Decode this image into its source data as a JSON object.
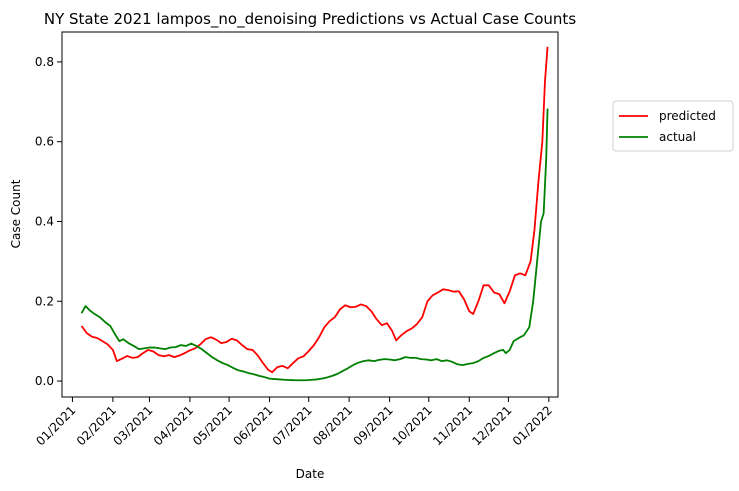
{
  "chart_data": {
    "type": "line",
    "title": "NY State 2021 lampos_no_denoising Predictions vs Actual Case Counts",
    "xlabel": "Date",
    "ylabel": "Case Count",
    "x_ticks": [
      "01/2021",
      "02/2021",
      "03/2021",
      "04/2021",
      "05/2021",
      "06/2021",
      "07/2021",
      "08/2021",
      "09/2021",
      "10/2021",
      "11/2021",
      "12/2021",
      "01/2022"
    ],
    "y_ticks": [
      "0.0",
      "0.2",
      "0.4",
      "0.6",
      "0.8"
    ],
    "xlim": [
      "2020-12-24",
      "2022-01-08"
    ],
    "ylim": [
      -0.04,
      0.875
    ],
    "grid": false,
    "legend_placement": "outside-top-right",
    "series": [
      {
        "name": "predicted",
        "color": "#ff0000",
        "points": [
          [
            "2021-01-08",
            0.138
          ],
          [
            "2021-01-12",
            0.12
          ],
          [
            "2021-01-16",
            0.111
          ],
          [
            "2021-01-20",
            0.108
          ],
          [
            "2021-01-24",
            0.1
          ],
          [
            "2021-01-28",
            0.092
          ],
          [
            "2021-02-01",
            0.078
          ],
          [
            "2021-02-04",
            0.05
          ],
          [
            "2021-02-08",
            0.056
          ],
          [
            "2021-02-12",
            0.063
          ],
          [
            "2021-02-16",
            0.058
          ],
          [
            "2021-02-20",
            0.06
          ],
          [
            "2021-02-24",
            0.07
          ],
          [
            "2021-02-28",
            0.078
          ],
          [
            "2021-03-04",
            0.074
          ],
          [
            "2021-03-08",
            0.065
          ],
          [
            "2021-03-12",
            0.062
          ],
          [
            "2021-03-16",
            0.065
          ],
          [
            "2021-03-20",
            0.06
          ],
          [
            "2021-03-24",
            0.064
          ],
          [
            "2021-03-28",
            0.07
          ],
          [
            "2021-04-01",
            0.077
          ],
          [
            "2021-04-05",
            0.082
          ],
          [
            "2021-04-09",
            0.092
          ],
          [
            "2021-04-13",
            0.105
          ],
          [
            "2021-04-17",
            0.11
          ],
          [
            "2021-04-21",
            0.104
          ],
          [
            "2021-04-25",
            0.095
          ],
          [
            "2021-04-29",
            0.098
          ],
          [
            "2021-05-03",
            0.106
          ],
          [
            "2021-05-07",
            0.102
          ],
          [
            "2021-05-11",
            0.09
          ],
          [
            "2021-05-15",
            0.08
          ],
          [
            "2021-05-19",
            0.078
          ],
          [
            "2021-05-23",
            0.064
          ],
          [
            "2021-05-27",
            0.045
          ],
          [
            "2021-05-31",
            0.028
          ],
          [
            "2021-06-03",
            0.022
          ],
          [
            "2021-06-07",
            0.035
          ],
          [
            "2021-06-11",
            0.038
          ],
          [
            "2021-06-15",
            0.032
          ],
          [
            "2021-06-19",
            0.045
          ],
          [
            "2021-06-23",
            0.057
          ],
          [
            "2021-06-27",
            0.062
          ],
          [
            "2021-07-01",
            0.075
          ],
          [
            "2021-07-05",
            0.09
          ],
          [
            "2021-07-09",
            0.11
          ],
          [
            "2021-07-13",
            0.135
          ],
          [
            "2021-07-17",
            0.15
          ],
          [
            "2021-07-21",
            0.16
          ],
          [
            "2021-07-25",
            0.18
          ],
          [
            "2021-07-29",
            0.19
          ],
          [
            "2021-08-02",
            0.185
          ],
          [
            "2021-08-06",
            0.186
          ],
          [
            "2021-08-10",
            0.192
          ],
          [
            "2021-08-14",
            0.188
          ],
          [
            "2021-08-18",
            0.175
          ],
          [
            "2021-08-22",
            0.155
          ],
          [
            "2021-08-26",
            0.14
          ],
          [
            "2021-08-30",
            0.145
          ],
          [
            "2021-09-03",
            0.125
          ],
          [
            "2021-09-06",
            0.102
          ],
          [
            "2021-09-10",
            0.115
          ],
          [
            "2021-09-14",
            0.125
          ],
          [
            "2021-09-18",
            0.132
          ],
          [
            "2021-09-22",
            0.143
          ],
          [
            "2021-09-26",
            0.16
          ],
          [
            "2021-09-30",
            0.2
          ],
          [
            "2021-10-04",
            0.215
          ],
          [
            "2021-10-08",
            0.222
          ],
          [
            "2021-10-12",
            0.23
          ],
          [
            "2021-10-16",
            0.228
          ],
          [
            "2021-10-20",
            0.224
          ],
          [
            "2021-10-24",
            0.225
          ],
          [
            "2021-10-28",
            0.205
          ],
          [
            "2021-11-01",
            0.175
          ],
          [
            "2021-11-04",
            0.168
          ],
          [
            "2021-11-08",
            0.2
          ],
          [
            "2021-11-12",
            0.24
          ],
          [
            "2021-11-16",
            0.24
          ],
          [
            "2021-11-20",
            0.222
          ],
          [
            "2021-11-24",
            0.218
          ],
          [
            "2021-11-28",
            0.195
          ],
          [
            "2021-12-02",
            0.225
          ],
          [
            "2021-12-06",
            0.265
          ],
          [
            "2021-12-10",
            0.27
          ],
          [
            "2021-12-14",
            0.265
          ],
          [
            "2021-12-18",
            0.3
          ],
          [
            "2021-12-21",
            0.38
          ],
          [
            "2021-12-24",
            0.5
          ],
          [
            "2021-12-27",
            0.6
          ],
          [
            "2021-12-29",
            0.75
          ],
          [
            "2021-12-31",
            0.838
          ]
        ]
      },
      {
        "name": "actual",
        "color": "#008000",
        "points": [
          [
            "2021-01-08",
            0.17
          ],
          [
            "2021-01-11",
            0.188
          ],
          [
            "2021-01-14",
            0.178
          ],
          [
            "2021-01-18",
            0.168
          ],
          [
            "2021-01-22",
            0.16
          ],
          [
            "2021-01-26",
            0.148
          ],
          [
            "2021-01-30",
            0.138
          ],
          [
            "2021-02-03",
            0.115
          ],
          [
            "2021-02-06",
            0.1
          ],
          [
            "2021-02-09",
            0.105
          ],
          [
            "2021-02-13",
            0.095
          ],
          [
            "2021-02-17",
            0.088
          ],
          [
            "2021-02-21",
            0.08
          ],
          [
            "2021-02-25",
            0.082
          ],
          [
            "2021-03-01",
            0.084
          ],
          [
            "2021-03-05",
            0.084
          ],
          [
            "2021-03-09",
            0.082
          ],
          [
            "2021-03-13",
            0.08
          ],
          [
            "2021-03-17",
            0.084
          ],
          [
            "2021-03-21",
            0.085
          ],
          [
            "2021-03-25",
            0.09
          ],
          [
            "2021-03-29",
            0.088
          ],
          [
            "2021-04-02",
            0.094
          ],
          [
            "2021-04-06",
            0.088
          ],
          [
            "2021-04-10",
            0.08
          ],
          [
            "2021-04-14",
            0.07
          ],
          [
            "2021-04-18",
            0.06
          ],
          [
            "2021-04-22",
            0.052
          ],
          [
            "2021-04-26",
            0.045
          ],
          [
            "2021-04-30",
            0.04
          ],
          [
            "2021-05-04",
            0.033
          ],
          [
            "2021-05-08",
            0.027
          ],
          [
            "2021-05-12",
            0.024
          ],
          [
            "2021-05-16",
            0.02
          ],
          [
            "2021-05-20",
            0.017
          ],
          [
            "2021-05-24",
            0.013
          ],
          [
            "2021-05-28",
            0.01
          ],
          [
            "2021-06-01",
            0.006
          ],
          [
            "2021-06-05",
            0.005
          ],
          [
            "2021-06-09",
            0.004
          ],
          [
            "2021-06-13",
            0.003
          ],
          [
            "2021-06-17",
            0.0025
          ],
          [
            "2021-06-21",
            0.002
          ],
          [
            "2021-06-25",
            0.002
          ],
          [
            "2021-06-29",
            0.002
          ],
          [
            "2021-07-03",
            0.003
          ],
          [
            "2021-07-07",
            0.004
          ],
          [
            "2021-07-11",
            0.006
          ],
          [
            "2021-07-15",
            0.009
          ],
          [
            "2021-07-19",
            0.013
          ],
          [
            "2021-07-23",
            0.018
          ],
          [
            "2021-07-27",
            0.025
          ],
          [
            "2021-07-31",
            0.032
          ],
          [
            "2021-08-04",
            0.04
          ],
          [
            "2021-08-08",
            0.046
          ],
          [
            "2021-08-12",
            0.05
          ],
          [
            "2021-08-16",
            0.052
          ],
          [
            "2021-08-20",
            0.05
          ],
          [
            "2021-08-24",
            0.053
          ],
          [
            "2021-08-28",
            0.055
          ],
          [
            "2021-09-01",
            0.054
          ],
          [
            "2021-09-05",
            0.052
          ],
          [
            "2021-09-09",
            0.055
          ],
          [
            "2021-09-13",
            0.06
          ],
          [
            "2021-09-17",
            0.058
          ],
          [
            "2021-09-21",
            0.058
          ],
          [
            "2021-09-25",
            0.055
          ],
          [
            "2021-09-29",
            0.054
          ],
          [
            "2021-10-03",
            0.052
          ],
          [
            "2021-10-07",
            0.055
          ],
          [
            "2021-10-11",
            0.05
          ],
          [
            "2021-10-15",
            0.052
          ],
          [
            "2021-10-19",
            0.048
          ],
          [
            "2021-10-23",
            0.042
          ],
          [
            "2021-10-27",
            0.04
          ],
          [
            "2021-10-31",
            0.043
          ],
          [
            "2021-11-04",
            0.045
          ],
          [
            "2021-11-08",
            0.05
          ],
          [
            "2021-11-12",
            0.058
          ],
          [
            "2021-11-16",
            0.063
          ],
          [
            "2021-11-20",
            0.07
          ],
          [
            "2021-11-24",
            0.076
          ],
          [
            "2021-11-27",
            0.078
          ],
          [
            "2021-11-29",
            0.07
          ],
          [
            "2021-12-02",
            0.078
          ],
          [
            "2021-12-05",
            0.1
          ],
          [
            "2021-12-09",
            0.108
          ],
          [
            "2021-12-13",
            0.115
          ],
          [
            "2021-12-17",
            0.135
          ],
          [
            "2021-12-20",
            0.2
          ],
          [
            "2021-12-23",
            0.3
          ],
          [
            "2021-12-26",
            0.4
          ],
          [
            "2021-12-28",
            0.42
          ],
          [
            "2021-12-30",
            0.56
          ],
          [
            "2021-12-31",
            0.683
          ]
        ]
      }
    ]
  }
}
